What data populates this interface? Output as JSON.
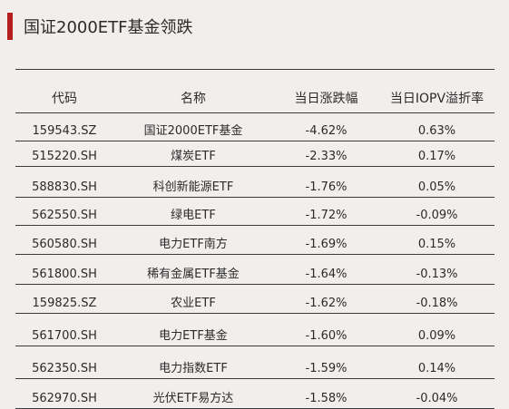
{
  "title": "国证2000ETF基金领跌",
  "table": {
    "headers": [
      "代码",
      "名称",
      "当日涨跌幅",
      "当日IOPV溢折率"
    ],
    "rows": [
      {
        "code": "159543.SZ",
        "name": "国证2000ETF基金",
        "change": "-4.62%",
        "iopv": "0.63%"
      },
      {
        "code": "515220.SH",
        "name": "煤炭ETF",
        "change": "-2.33%",
        "iopv": "0.17%"
      },
      {
        "code": "588830.SH",
        "name": "科创新能源ETF",
        "change": "-1.76%",
        "iopv": "0.05%"
      },
      {
        "code": "562550.SH",
        "name": "绿电ETF",
        "change": "-1.72%",
        "iopv": "-0.09%"
      },
      {
        "code": "560580.SH",
        "name": "电力ETF南方",
        "change": "-1.69%",
        "iopv": "0.15%"
      },
      {
        "code": "561800.SH",
        "name": "稀有金属ETF基金",
        "change": "-1.64%",
        "iopv": "-0.13%"
      },
      {
        "code": "159825.SZ",
        "name": "农业ETF",
        "change": "-1.62%",
        "iopv": "-0.18%"
      },
      {
        "code": "561700.SH",
        "name": "电力ETF基金",
        "change": "-1.60%",
        "iopv": "0.09%"
      },
      {
        "code": "562350.SH",
        "name": "电力指数ETF",
        "change": "-1.59%",
        "iopv": "0.14%"
      },
      {
        "code": "562970.SH",
        "name": "光伏ETF易方达",
        "change": "-1.58%",
        "iopv": "-0.04%"
      }
    ]
  }
}
